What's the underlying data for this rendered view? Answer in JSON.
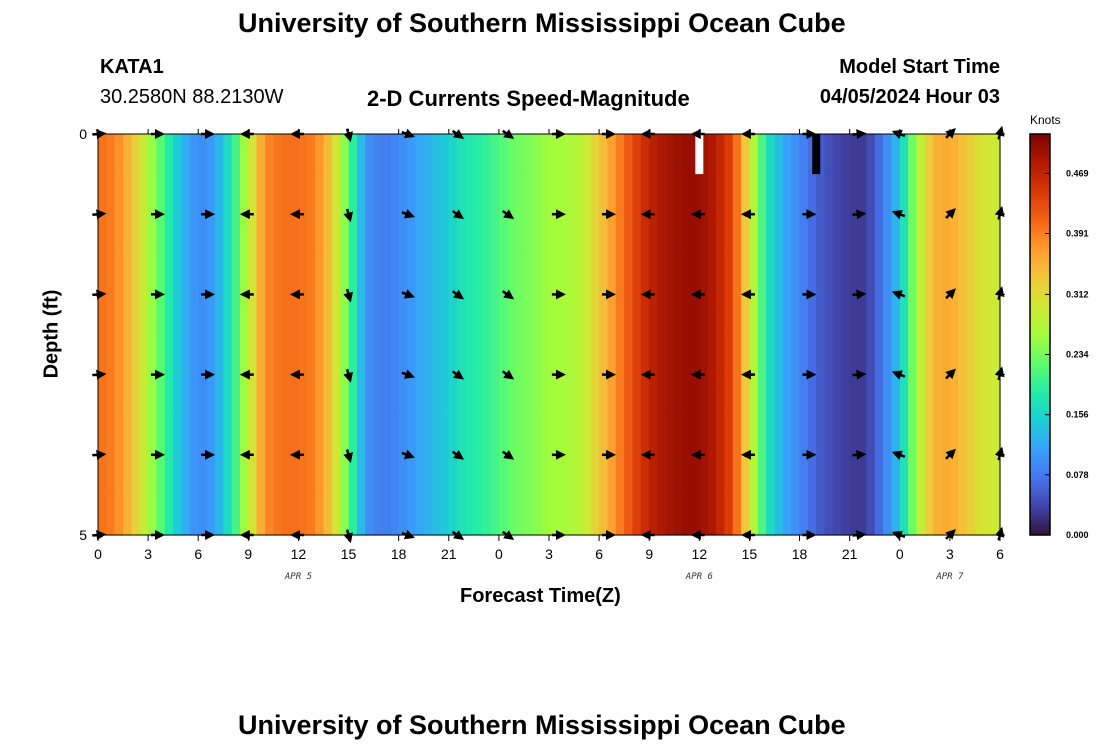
{
  "header": {
    "title": "University of Southern Mississippi Ocean Cube",
    "station_id": "KATA1",
    "coordinates": "30.2580N  88.2130W",
    "subtitle": "2-D Currents Speed-Magnitude",
    "model_label": "Model Start Time",
    "model_time": "04/05/2024 Hour 03"
  },
  "footer": {
    "title": "University of Southern Mississippi Ocean Cube"
  },
  "chart_data": {
    "type": "heatmap",
    "title": "2-D Currents Speed-Magnitude",
    "xlabel": "Forecast Time(Z)",
    "ylabel": "Depth (ft)",
    "x_hours": [
      0,
      3,
      6,
      9,
      12,
      15,
      18,
      21,
      24,
      27,
      30,
      33,
      36,
      39,
      42,
      45,
      48,
      51,
      54
    ],
    "x_tick_labels": [
      "0",
      "3",
      "6",
      "9",
      "12",
      "15",
      "18",
      "21",
      "0",
      "3",
      "6",
      "9",
      "12",
      "15",
      "18",
      "21",
      "0",
      "3",
      "6"
    ],
    "xlim": [
      0,
      54
    ],
    "date_labels": [
      {
        "hour": 12,
        "text": "APR 5"
      },
      {
        "hour": 36,
        "text": "APR 6"
      },
      {
        "hour": 51,
        "text": "APR 7"
      }
    ],
    "y_tick_labels": [
      {
        "depth": 0,
        "text": "0"
      },
      {
        "depth": 5,
        "text": "5"
      }
    ],
    "ylim": [
      0,
      5
    ],
    "depth_levels": [
      0,
      1,
      2,
      3,
      4,
      5
    ],
    "speed_profile_hours": [
      0,
      1,
      2,
      3,
      4,
      5,
      6,
      7,
      8,
      9,
      10,
      11,
      12,
      13,
      14,
      15,
      16,
      17,
      18,
      19,
      20,
      21,
      22,
      23,
      24,
      25,
      26,
      27,
      28,
      29,
      30,
      31,
      32,
      33,
      34,
      35,
      36,
      37,
      38,
      39,
      40,
      41,
      42,
      43,
      44,
      45,
      46,
      47,
      48,
      49,
      50,
      51,
      52,
      53,
      54
    ],
    "speed_profile_knots": [
      0.4,
      0.39,
      0.34,
      0.27,
      0.2,
      0.13,
      0.09,
      0.11,
      0.18,
      0.28,
      0.38,
      0.4,
      0.4,
      0.39,
      0.33,
      0.22,
      0.1,
      0.08,
      0.09,
      0.11,
      0.13,
      0.15,
      0.18,
      0.19,
      0.21,
      0.23,
      0.24,
      0.26,
      0.26,
      0.28,
      0.33,
      0.38,
      0.43,
      0.47,
      0.49,
      0.5,
      0.5,
      0.48,
      0.43,
      0.3,
      0.18,
      0.12,
      0.09,
      0.06,
      0.04,
      0.03,
      0.03,
      0.08,
      0.14,
      0.26,
      0.35,
      0.36,
      0.33,
      0.3,
      0.29
    ],
    "missing_data": [
      {
        "hour": 36,
        "depth_top": 0,
        "depth_bottom": 0.5,
        "color": "#ffffff"
      },
      {
        "hour": 43,
        "depth_top": 0,
        "depth_bottom": 0.5,
        "color": "#000000"
      }
    ],
    "arrow_hours": [
      0,
      3.5,
      6.5,
      9,
      12,
      15,
      18.5,
      21.5,
      24.5,
      27.5,
      30.5,
      33,
      36,
      39,
      42.5,
      45.5,
      48,
      51,
      54
    ],
    "arrow_depths": [
      0,
      1,
      2,
      3,
      4,
      5
    ],
    "arrow_direction_deg": [
      -5,
      0,
      0,
      180,
      180,
      75,
      20,
      35,
      35,
      0,
      0,
      180,
      180,
      180,
      0,
      -5,
      200,
      -45,
      -75
    ],
    "colorbar": {
      "units": "Knots",
      "ticks": [
        0.0,
        0.078,
        0.156,
        0.234,
        0.312,
        0.391,
        0.469
      ],
      "tick_labels": [
        "0.000",
        "0.078",
        "0.156",
        "0.234",
        "0.312",
        "0.391",
        "0.469"
      ],
      "range": [
        0.0,
        0.52
      ],
      "colors": [
        "#30123b",
        "#4145ab",
        "#4675ed",
        "#39a2fc",
        "#1bcfd4",
        "#24eca6",
        "#61fc6c",
        "#a4fc3b",
        "#d1e834",
        "#f3c63a",
        "#fe9b2d",
        "#f36315",
        "#d93806",
        "#b11901",
        "#7a0403"
      ]
    }
  }
}
